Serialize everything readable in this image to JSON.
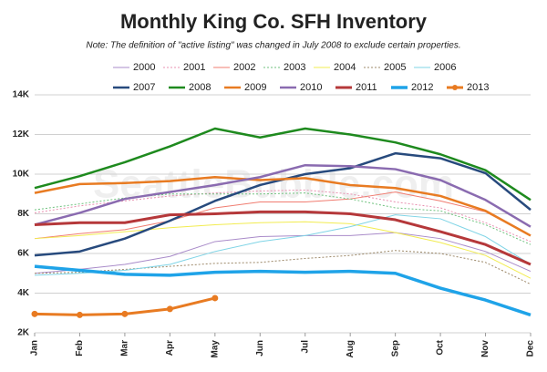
{
  "chart_data": {
    "type": "line",
    "title": "Monthly King Co. SFH Inventory",
    "subtitle": "Note: The definition of \"active listing\" was changed in July 2008 to exclude certain properties.",
    "watermark": "SeattleBubble.com",
    "categories": [
      "Jan",
      "Feb",
      "Mar",
      "Apr",
      "May",
      "Jun",
      "Jul",
      "Aug",
      "Sep",
      "Oct",
      "Nov",
      "Dec"
    ],
    "ylim": [
      2000,
      14000
    ],
    "yticks": [
      {
        "value": 2000,
        "label": "2K"
      },
      {
        "value": 4000,
        "label": "4K"
      },
      {
        "value": 6000,
        "label": "6K"
      },
      {
        "value": 8000,
        "label": "8K"
      },
      {
        "value": 10000,
        "label": "10K"
      },
      {
        "value": 12000,
        "label": "12K"
      },
      {
        "value": 14000,
        "label": "14K"
      }
    ],
    "grid": true,
    "legend": "top",
    "series": [
      {
        "name": "2000",
        "color": "#a98bc9",
        "width": 1,
        "dash": false,
        "values": [
          5000,
          5200,
          5450,
          5850,
          6600,
          6850,
          6900,
          6900,
          7050,
          6750,
          6100,
          5100
        ]
      },
      {
        "name": "2001",
        "color": "#e890b0",
        "width": 1,
        "dash": true,
        "values": [
          8050,
          8400,
          8650,
          8900,
          9050,
          9150,
          9200,
          9000,
          8600,
          8300,
          7550,
          6600
        ]
      },
      {
        "name": "2002",
        "color": "#f07c70",
        "width": 1,
        "dash": false,
        "values": [
          6750,
          7000,
          7200,
          7650,
          8300,
          8600,
          8600,
          8750,
          9100,
          8650,
          8100,
          6900
        ]
      },
      {
        "name": "2003",
        "color": "#6fc27e",
        "width": 1,
        "dash": true,
        "values": [
          8200,
          8500,
          8800,
          9000,
          9000,
          9000,
          9050,
          8750,
          8300,
          8150,
          7450,
          6450
        ]
      },
      {
        "name": "2004",
        "color": "#f2ec50",
        "width": 1,
        "dash": false,
        "values": [
          6750,
          6900,
          7100,
          7300,
          7450,
          7550,
          7600,
          7500,
          7050,
          6550,
          5900,
          4750
        ]
      },
      {
        "name": "2005",
        "color": "#9c8868",
        "width": 1,
        "dash": true,
        "values": [
          5000,
          5050,
          5200,
          5350,
          5500,
          5550,
          5750,
          5900,
          6150,
          6000,
          5550,
          4450
        ]
      },
      {
        "name": "2006",
        "color": "#7fd4e6",
        "width": 1,
        "dash": false,
        "values": [
          4900,
          5000,
          5150,
          5450,
          6100,
          6600,
          6900,
          7350,
          7950,
          7750,
          6850,
          5450
        ]
      },
      {
        "name": "2007",
        "color": "#274a7d",
        "width": 2.5,
        "dash": false,
        "values": [
          5900,
          6100,
          6750,
          7650,
          8650,
          9450,
          10000,
          10300,
          11050,
          10800,
          10050,
          8200
        ]
      },
      {
        "name": "2008",
        "color": "#1e8a1e",
        "width": 2.5,
        "dash": false,
        "values": [
          9300,
          9900,
          10600,
          11400,
          12300,
          11850,
          12300,
          12000,
          11600,
          11000,
          10200,
          8700
        ]
      },
      {
        "name": "2009",
        "color": "#e87b22",
        "width": 2.5,
        "dash": false,
        "values": [
          9050,
          9500,
          9550,
          9650,
          9850,
          9700,
          9800,
          9450,
          9300,
          8900,
          8150,
          6900
        ]
      },
      {
        "name": "2010",
        "color": "#8a6bb0",
        "width": 2.5,
        "dash": false,
        "values": [
          7450,
          8050,
          8750,
          9100,
          9450,
          9850,
          10450,
          10400,
          10250,
          9700,
          8700,
          7350
        ]
      },
      {
        "name": "2011",
        "color": "#b5383a",
        "width": 3,
        "dash": false,
        "values": [
          7450,
          7550,
          7550,
          7950,
          8000,
          8100,
          8100,
          8000,
          7700,
          7100,
          6450,
          5450
        ]
      },
      {
        "name": "2012",
        "color": "#1fa3e8",
        "width": 3.5,
        "dash": false,
        "values": [
          5350,
          5150,
          4950,
          4900,
          5050,
          5100,
          5050,
          5100,
          5000,
          4250,
          3650,
          2900
        ]
      },
      {
        "name": "2013",
        "color": "#e87b22",
        "width": 3,
        "dash": false,
        "markers": true,
        "values": [
          2950,
          2900,
          2950,
          3200,
          3750,
          null,
          null,
          null,
          null,
          null,
          null,
          null
        ]
      }
    ]
  }
}
